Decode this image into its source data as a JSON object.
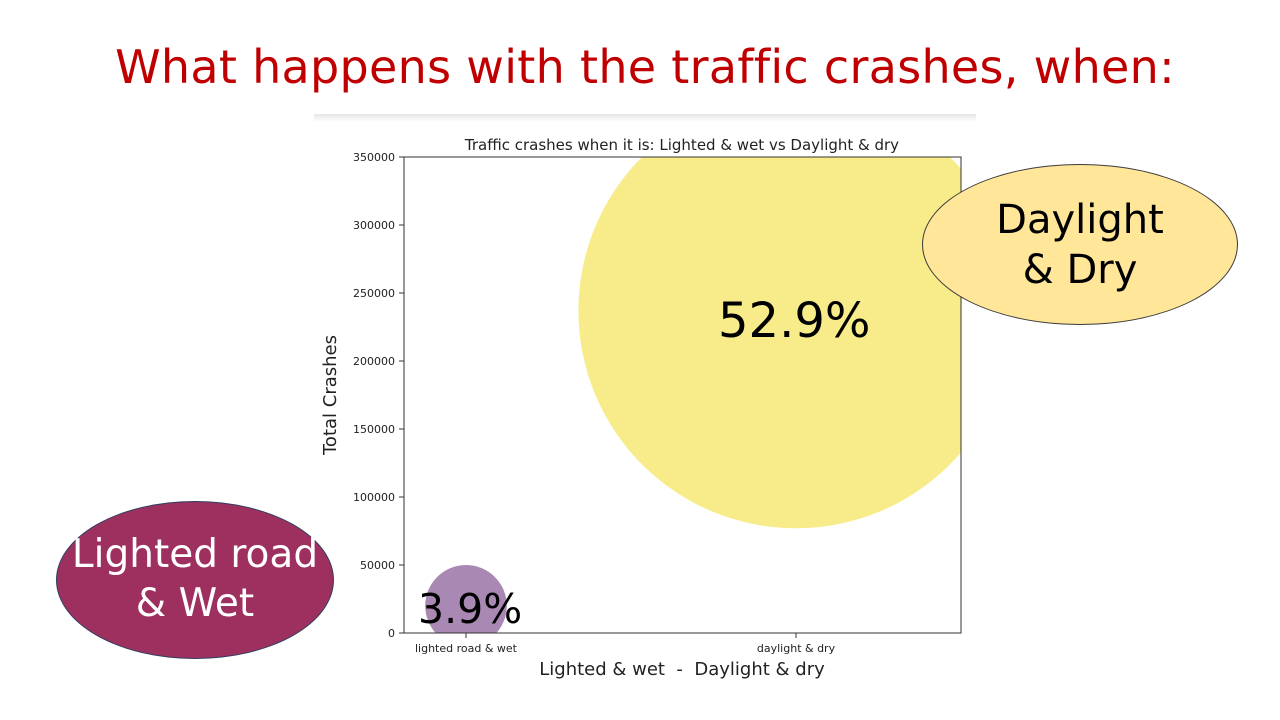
{
  "slide": {
    "title": "What happens with the traffic crashes, when:"
  },
  "callouts": {
    "daylight_line1": "Daylight",
    "daylight_line2": "& Dry",
    "lighted_line1": "Lighted road",
    "lighted_line2": "& Wet"
  },
  "chart_data": {
    "type": "scatter",
    "title": "Traffic crashes when it is: Lighted & wet vs Daylight & dry",
    "xlabel": "Lighted & wet  -  Daylight & dry",
    "ylabel": "Total Crashes",
    "categories": [
      "lighted road & wet",
      "daylight & dry"
    ],
    "ylim": [
      0,
      350000
    ],
    "yticks": [
      0,
      50000,
      100000,
      150000,
      200000,
      250000,
      300000,
      350000
    ],
    "grid": false,
    "points": [
      {
        "category": "lighted road & wet",
        "y": 20000,
        "bubble_radius_units": 30000,
        "label": "3.9%",
        "color": "#7b4a8b"
      },
      {
        "category": "daylight & dry",
        "y": 237000,
        "bubble_radius_units": 160000,
        "label": "52.9%",
        "color": "#f3e24a"
      }
    ]
  },
  "colors": {
    "title": "#c00000",
    "daylight_callout": "#ffe699",
    "lighted_callout": "#9e3060"
  }
}
